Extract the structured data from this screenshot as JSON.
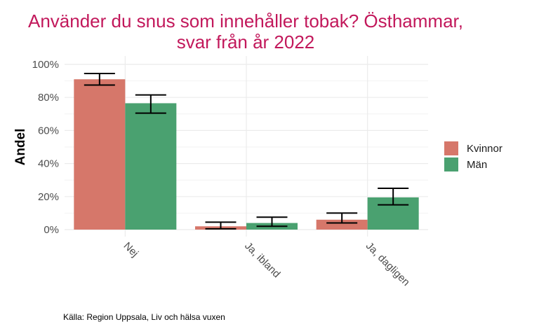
{
  "chart_data": {
    "type": "bar",
    "title_lines": [
      "Använder du snus som innehåller tobak? Östhammar,",
      "svar från år 2022"
    ],
    "ylabel": "Andel",
    "xlabel": "",
    "ylim": [
      0,
      100
    ],
    "yticks": [
      0,
      20,
      40,
      60,
      80,
      100
    ],
    "ytick_labels": [
      "0%",
      "20%",
      "40%",
      "60%",
      "80%",
      "100%"
    ],
    "categories": [
      "Nej",
      "Ja, ibland",
      "Ja, dagligen"
    ],
    "series": [
      {
        "name": "Kvinnor",
        "color": "#d6776a",
        "values": [
          91,
          2,
          6
        ],
        "ci_low": [
          87.5,
          0.5,
          4
        ],
        "ci_high": [
          94.5,
          4.5,
          10
        ]
      },
      {
        "name": "Män",
        "color": "#4aa170",
        "values": [
          76.5,
          4,
          19.5
        ],
        "ci_low": [
          70.5,
          2,
          15
        ],
        "ci_high": [
          81.5,
          7.5,
          25
        ]
      }
    ],
    "grid": true,
    "legend_position": "right",
    "source": "Källa: Region Uppsala, Liv och hälsa vuxen"
  }
}
